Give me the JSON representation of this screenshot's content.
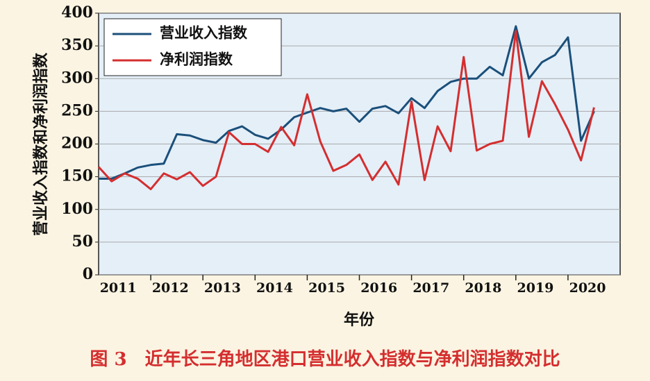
{
  "chart_data": {
    "type": "line",
    "title": "图 3　近年长三角地区港口营业收入指数与净利润指数对比",
    "x_label": "年份",
    "y_label": "营业收入指数和净利润指数",
    "categories": [
      null,
      null,
      "2011",
      null,
      null,
      null,
      "2012",
      null,
      null,
      null,
      "2013",
      null,
      null,
      null,
      "2014",
      null,
      null,
      null,
      "2015",
      null,
      null,
      null,
      "2016",
      null,
      null,
      null,
      "2017",
      null,
      null,
      null,
      "2018",
      null,
      null,
      null,
      "2019",
      null,
      null,
      null,
      "2020"
    ],
    "series": [
      {
        "name": "营业收入指数",
        "color": "#1b4f7a",
        "values": [
          147,
          147,
          155,
          164,
          168,
          170,
          215,
          213,
          206,
          202,
          220,
          227,
          214,
          208,
          222,
          241,
          248,
          255,
          250,
          254,
          234,
          254,
          258,
          247,
          270,
          255,
          281,
          295,
          300,
          300,
          318,
          305,
          380,
          300,
          325,
          336,
          363,
          205,
          250
        ]
      },
      {
        "name": "净利润指数",
        "color": "#d42e2f",
        "values": [
          165,
          143,
          155,
          147,
          131,
          155,
          146,
          157,
          136,
          150,
          218,
          200,
          200,
          188,
          226,
          198,
          276,
          204,
          159,
          168,
          184,
          145,
          173,
          138,
          265,
          145,
          227,
          189,
          333,
          190,
          200,
          205,
          373,
          211,
          296,
          261,
          222,
          175,
          256
        ]
      }
    ],
    "ylim": [
      0,
      400
    ],
    "yticks": [
      0,
      50,
      100,
      150,
      200,
      250,
      300,
      350,
      400
    ],
    "grid": true,
    "legend": "upper left"
  }
}
